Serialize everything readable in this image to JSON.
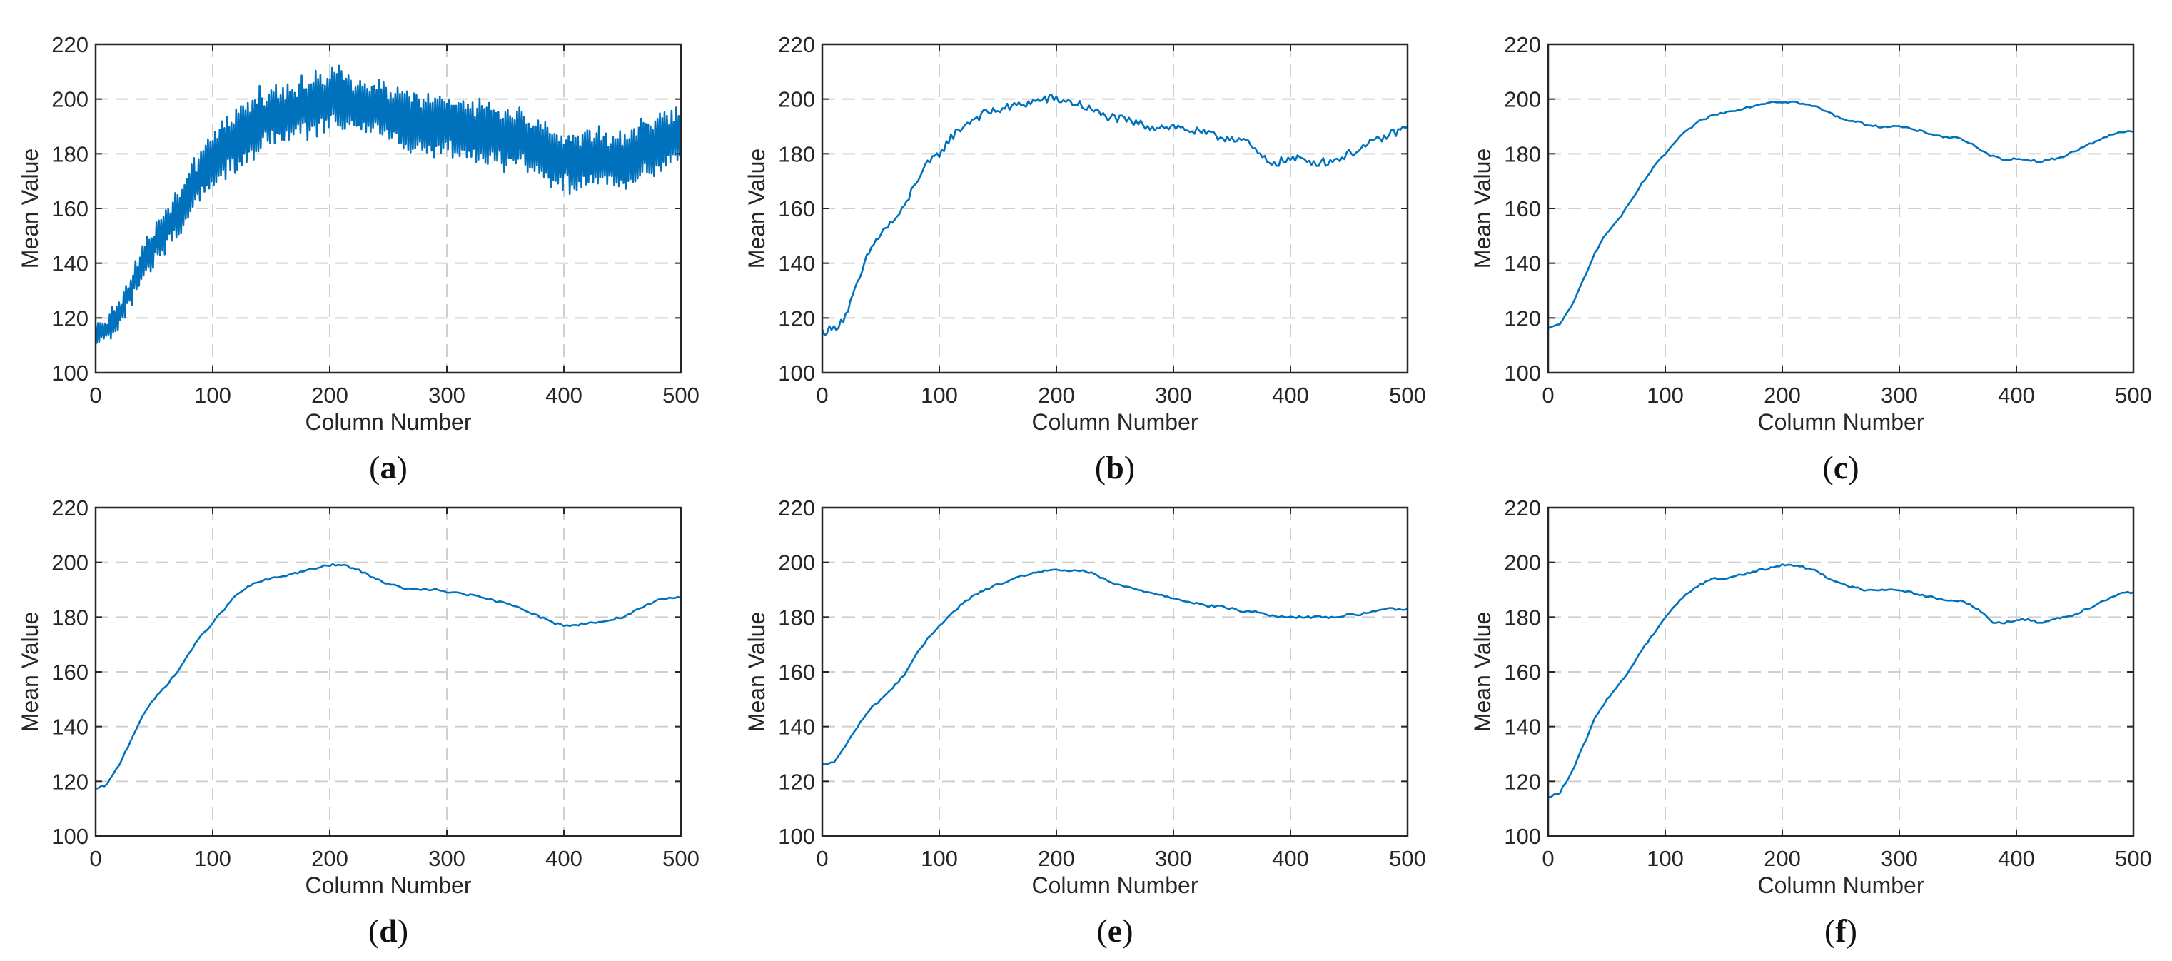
{
  "figure": {
    "line_color": "#0072BD",
    "grid_color": "#cfcfcf",
    "axis_color": "#262626"
  },
  "chart_data": [
    {
      "panel": "a",
      "type": "line",
      "noise": "high",
      "title": "",
      "xlabel": "Column Number",
      "ylabel": "Mean Value",
      "xlim": [
        0,
        500
      ],
      "ylim": [
        100,
        220
      ],
      "xticks": [
        0,
        100,
        200,
        300,
        400,
        500
      ],
      "yticks": [
        100,
        120,
        140,
        160,
        180,
        200,
        220
      ],
      "grid": true,
      "series": [
        {
          "name": "a",
          "x": [
            0,
            10,
            20,
            30,
            40,
            50,
            60,
            70,
            80,
            90,
            100,
            110,
            120,
            130,
            140,
            150,
            160,
            170,
            180,
            190,
            200,
            210,
            220,
            230,
            240,
            250,
            260,
            270,
            280,
            290,
            300,
            310,
            320,
            330,
            340,
            350,
            360,
            370,
            380,
            390,
            400,
            410,
            420,
            430,
            440,
            450,
            460,
            470,
            480,
            490,
            500
          ],
          "y": [
            115,
            116,
            121,
            130,
            140,
            147,
            152,
            158,
            165,
            172,
            178,
            182,
            186,
            189,
            192,
            194,
            195,
            196,
            197,
            198,
            200,
            199,
            198,
            197,
            196,
            194,
            193,
            192,
            191,
            190,
            190,
            189,
            189,
            188,
            187,
            186,
            185,
            184,
            182,
            179,
            178,
            177,
            178,
            178,
            177,
            178,
            180,
            182,
            184,
            186,
            188
          ]
        }
      ]
    },
    {
      "panel": "b",
      "type": "line",
      "noise": "medium",
      "title": "",
      "xlabel": "Column Number",
      "ylabel": "Mean Value",
      "xlim": [
        0,
        500
      ],
      "ylim": [
        100,
        220
      ],
      "xticks": [
        0,
        100,
        200,
        300,
        400,
        500
      ],
      "yticks": [
        100,
        120,
        140,
        160,
        180,
        200,
        220
      ],
      "grid": true,
      "series": [
        {
          "name": "b",
          "x": [
            0,
            10,
            20,
            30,
            40,
            50,
            60,
            70,
            80,
            90,
            100,
            110,
            120,
            130,
            140,
            150,
            160,
            170,
            180,
            190,
            200,
            210,
            220,
            230,
            240,
            250,
            260,
            270,
            280,
            290,
            300,
            310,
            320,
            330,
            340,
            350,
            360,
            370,
            380,
            390,
            400,
            410,
            420,
            430,
            440,
            450,
            460,
            470,
            480,
            490,
            500
          ],
          "y": [
            115,
            116,
            121,
            132,
            144,
            151,
            155,
            160,
            170,
            176,
            180,
            186,
            190,
            193,
            195,
            196,
            197,
            198,
            199,
            200,
            200,
            199,
            198,
            196,
            194,
            193,
            192,
            191,
            190,
            190,
            190,
            189,
            188,
            187,
            186,
            186,
            185,
            181,
            177,
            177,
            178,
            178,
            177,
            177,
            178,
            180,
            182,
            184,
            186,
            188,
            190
          ]
        }
      ]
    },
    {
      "panel": "c",
      "type": "line",
      "noise": "none",
      "title": "",
      "xlabel": "Column Number",
      "ylabel": "Mean Value",
      "xlim": [
        0,
        500
      ],
      "ylim": [
        100,
        220
      ],
      "xticks": [
        0,
        100,
        200,
        300,
        400,
        500
      ],
      "yticks": [
        100,
        120,
        140,
        160,
        180,
        200,
        220
      ],
      "grid": true,
      "series": [
        {
          "name": "c",
          "x": [
            0,
            10,
            20,
            30,
            40,
            50,
            60,
            70,
            80,
            90,
            100,
            110,
            120,
            130,
            140,
            150,
            160,
            170,
            180,
            190,
            200,
            210,
            220,
            230,
            240,
            250,
            260,
            270,
            280,
            290,
            300,
            310,
            320,
            330,
            340,
            350,
            360,
            370,
            380,
            390,
            400,
            410,
            420,
            430,
            440,
            450,
            460,
            470,
            480,
            490,
            500
          ],
          "y": [
            116,
            118,
            124,
            134,
            144,
            151,
            156,
            162,
            169,
            175,
            180,
            185,
            189,
            192,
            194,
            195,
            196,
            197,
            198,
            199,
            199,
            199,
            198,
            197,
            195,
            193,
            192,
            191,
            190,
            190,
            190,
            189,
            188,
            187,
            186,
            186,
            184,
            181,
            179,
            178,
            178,
            178,
            177,
            178,
            179,
            181,
            183,
            185,
            187,
            188,
            188
          ]
        }
      ]
    },
    {
      "panel": "d",
      "type": "line",
      "noise": "none",
      "title": "",
      "xlabel": "Column Number",
      "ylabel": "Mean Value",
      "xlim": [
        0,
        500
      ],
      "ylim": [
        100,
        220
      ],
      "xticks": [
        0,
        100,
        200,
        300,
        400,
        500
      ],
      "yticks": [
        100,
        120,
        140,
        160,
        180,
        200,
        220
      ],
      "grid": true,
      "series": [
        {
          "name": "d",
          "x": [
            0,
            10,
            20,
            30,
            40,
            50,
            60,
            70,
            80,
            90,
            100,
            110,
            120,
            130,
            140,
            150,
            160,
            170,
            180,
            190,
            200,
            210,
            220,
            230,
            240,
            250,
            260,
            270,
            280,
            290,
            300,
            310,
            320,
            330,
            340,
            350,
            360,
            370,
            380,
            390,
            400,
            410,
            420,
            430,
            440,
            450,
            460,
            470,
            480,
            490,
            500
          ],
          "y": [
            117,
            119,
            126,
            135,
            144,
            150,
            155,
            160,
            167,
            173,
            178,
            183,
            188,
            191,
            193,
            194,
            195,
            196,
            197,
            198,
            199,
            199,
            198,
            196,
            194,
            192,
            191,
            190,
            190,
            190,
            189,
            189,
            188,
            187,
            186,
            185,
            184,
            182,
            180,
            178,
            177,
            177,
            178,
            178,
            179,
            180,
            182,
            184,
            186,
            187,
            187
          ]
        }
      ]
    },
    {
      "panel": "e",
      "type": "line",
      "noise": "none",
      "title": "",
      "xlabel": "Column Number",
      "ylabel": "Mean Value",
      "xlim": [
        0,
        500
      ],
      "ylim": [
        100,
        220
      ],
      "xticks": [
        0,
        100,
        200,
        300,
        400,
        500
      ],
      "yticks": [
        100,
        120,
        140,
        160,
        180,
        200,
        220
      ],
      "grid": true,
      "series": [
        {
          "name": "e",
          "x": [
            0,
            10,
            20,
            30,
            40,
            50,
            60,
            70,
            80,
            90,
            100,
            110,
            120,
            130,
            140,
            150,
            160,
            170,
            180,
            190,
            200,
            210,
            220,
            230,
            240,
            250,
            260,
            270,
            280,
            290,
            300,
            310,
            320,
            330,
            340,
            350,
            360,
            370,
            380,
            390,
            400,
            410,
            420,
            430,
            440,
            450,
            460,
            470,
            480,
            490,
            500
          ],
          "y": [
            126,
            127,
            133,
            140,
            146,
            150,
            154,
            159,
            166,
            172,
            177,
            181,
            185,
            188,
            190,
            192,
            193,
            195,
            196,
            197,
            197,
            197,
            197,
            196,
            194,
            192,
            191,
            190,
            189,
            188,
            187,
            186,
            185,
            184,
            184,
            183,
            182,
            182,
            181,
            180,
            180,
            180,
            180,
            180,
            180,
            181,
            181,
            182,
            183,
            183,
            183
          ]
        }
      ]
    },
    {
      "panel": "f",
      "type": "line",
      "noise": "none",
      "title": "",
      "xlabel": "Column Number",
      "ylabel": "Mean Value",
      "xlim": [
        0,
        500
      ],
      "ylim": [
        100,
        220
      ],
      "xticks": [
        0,
        100,
        200,
        300,
        400,
        500
      ],
      "yticks": [
        100,
        120,
        140,
        160,
        180,
        200,
        220
      ],
      "grid": true,
      "series": [
        {
          "name": "f",
          "x": [
            0,
            10,
            20,
            30,
            40,
            50,
            60,
            70,
            80,
            90,
            100,
            110,
            120,
            130,
            140,
            150,
            160,
            170,
            180,
            190,
            200,
            210,
            220,
            230,
            240,
            250,
            260,
            270,
            280,
            290,
            300,
            310,
            320,
            330,
            340,
            350,
            360,
            370,
            380,
            390,
            400,
            410,
            420,
            430,
            440,
            450,
            460,
            470,
            480,
            490,
            500
          ],
          "y": [
            114,
            116,
            123,
            133,
            143,
            150,
            155,
            161,
            168,
            174,
            180,
            185,
            189,
            192,
            194,
            194,
            195,
            196,
            197,
            198,
            199,
            199,
            198,
            197,
            194,
            192,
            191,
            190,
            190,
            190,
            190,
            189,
            188,
            187,
            186,
            186,
            185,
            182,
            178,
            178,
            179,
            179,
            178,
            179,
            180,
            181,
            183,
            185,
            187,
            189,
            189
          ]
        }
      ]
    }
  ]
}
